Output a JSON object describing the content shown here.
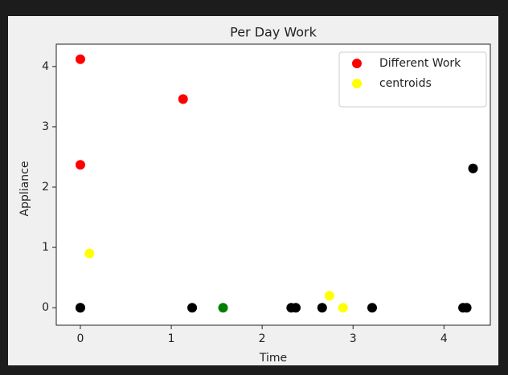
{
  "chart_data": {
    "type": "scatter",
    "title": "Per Day Work",
    "xlabel": "Time",
    "ylabel": "Appliance",
    "xlim": [
      -0.265,
      4.51
    ],
    "ylim": [
      -0.29,
      4.37
    ],
    "xticks": [
      0,
      1,
      2,
      3,
      4
    ],
    "yticks": [
      0,
      1,
      2,
      3,
      4
    ],
    "grid": false,
    "legend": "upper right",
    "series": [
      {
        "name": "Different Work",
        "color": "#ff0000",
        "x": [
          0,
          0,
          1.13,
          0
        ],
        "values": [
          4.12,
          2.37,
          3.46,
          0
        ]
      },
      {
        "color": "#000000",
        "x": [
          0,
          1.23,
          2.32,
          2.37,
          2.66,
          3.21,
          4.21,
          4.25,
          4.32
        ],
        "values": [
          0,
          0,
          0,
          0,
          0,
          0,
          0,
          0,
          2.31
        ]
      },
      {
        "color": "#008000",
        "x": [
          1.57
        ],
        "values": [
          0
        ]
      },
      {
        "name": "centroids",
        "color": "#ffff00",
        "x": [
          0.1,
          2.74,
          2.89
        ],
        "values": [
          0.9,
          0.2,
          0
        ]
      }
    ]
  }
}
